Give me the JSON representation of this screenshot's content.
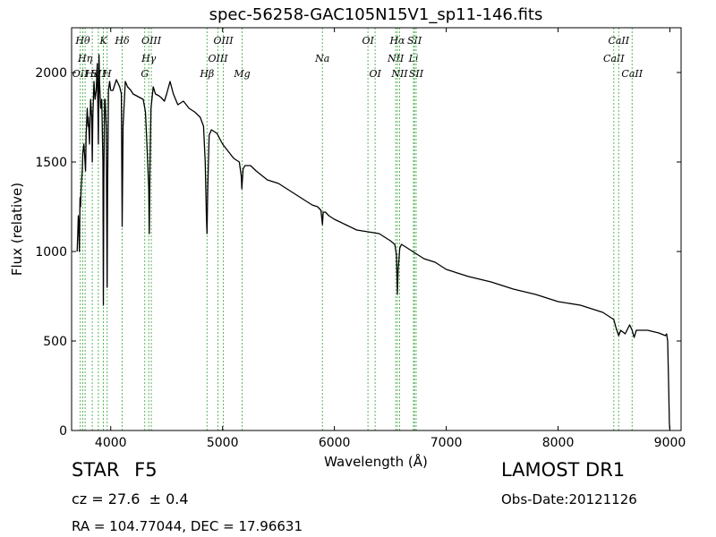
{
  "chart_data": {
    "type": "line",
    "title": "spec-56258-GAC105N15V1_sp11-146.fits",
    "xlabel": "Wavelength (Å)",
    "ylabel": "Flux (relative)",
    "xlim": [
      3650,
      9100
    ],
    "ylim": [
      0,
      2250
    ],
    "xticks": [
      4000,
      5000,
      6000,
      7000,
      8000,
      9000
    ],
    "yticks": [
      0,
      500,
      1000,
      1500,
      2000
    ],
    "grid": false,
    "line_color": "#000000",
    "marker_color": "#5bb55b",
    "series": [
      {
        "x": [
          3700,
          3705,
          3710,
          3715,
          3720,
          3725,
          3730,
          3735,
          3740,
          3745,
          3750,
          3760,
          3770,
          3775,
          3780,
          3790,
          3797,
          3800,
          3810,
          3820,
          3830,
          3835,
          3840,
          3850,
          3860,
          3870,
          3880,
          3889,
          3895,
          3900,
          3910,
          3920,
          3930,
          3934,
          3938,
          3945,
          3950,
          3960,
          3968,
          3972,
          3980,
          3990,
          4000,
          4010,
          4020,
          4050,
          4080,
          4095,
          4102,
          4110,
          4130,
          4150,
          4180,
          4200,
          4230,
          4260,
          4290,
          4310,
          4320,
          4330,
          4340,
          4345,
          4350,
          4360,
          4380,
          4400,
          4430,
          4450,
          4480,
          4500,
          4530,
          4560,
          4600,
          4650,
          4700,
          4750,
          4800,
          4830,
          4845,
          4855,
          4861,
          4867,
          4880,
          4900,
          4950,
          5000,
          5050,
          5100,
          5150,
          5167,
          5172,
          5183,
          5200,
          5250,
          5300,
          5400,
          5500,
          5600,
          5700,
          5800,
          5850,
          5880,
          5893,
          5900,
          5920,
          5950,
          6000,
          6100,
          6200,
          6300,
          6400,
          6500,
          6540,
          6555,
          6563,
          6570,
          6585,
          6600,
          6650,
          6700,
          6800,
          6900,
          7000,
          7200,
          7400,
          7600,
          7800,
          8000,
          8200,
          8400,
          8498,
          8520,
          8542,
          8560,
          8600,
          8640,
          8662,
          8680,
          8700,
          8800,
          8900,
          8960,
          8970,
          8975,
          8980,
          8990,
          8995,
          9000
        ],
        "y": [
          1000,
          1100,
          1200,
          1150,
          1000,
          1300,
          1250,
          1350,
          1400,
          1450,
          1550,
          1600,
          1500,
          1450,
          1650,
          1800,
          1700,
          1750,
          1600,
          1850,
          1750,
          1500,
          1750,
          1950,
          1850,
          1900,
          2050,
          1600,
          2100,
          1950,
          1800,
          1850,
          1500,
          700,
          1400,
          1850,
          1850,
          1700,
          800,
          1350,
          1900,
          1950,
          1900,
          1900,
          1900,
          1960,
          1920,
          1880,
          1140,
          1700,
          1950,
          1920,
          1900,
          1880,
          1870,
          1860,
          1850,
          1780,
          1650,
          1500,
          1350,
          1100,
          1450,
          1800,
          1920,
          1880,
          1870,
          1860,
          1840,
          1880,
          1950,
          1880,
          1820,
          1840,
          1800,
          1780,
          1750,
          1700,
          1500,
          1200,
          1100,
          1350,
          1650,
          1680,
          1660,
          1600,
          1560,
          1520,
          1500,
          1420,
          1350,
          1460,
          1480,
          1480,
          1450,
          1400,
          1380,
          1340,
          1300,
          1260,
          1250,
          1230,
          1150,
          1220,
          1220,
          1200,
          1180,
          1150,
          1120,
          1110,
          1100,
          1060,
          1040,
          980,
          760,
          900,
          1020,
          1040,
          1020,
          1000,
          960,
          940,
          900,
          860,
          830,
          790,
          760,
          720,
          700,
          660,
          620,
          570,
          530,
          560,
          540,
          590,
          560,
          520,
          560,
          560,
          545,
          530,
          540,
          520,
          500,
          200,
          40,
          0
        ]
      }
    ],
    "line_markers": [
      {
        "wl": 3727,
        "label": "OII",
        "row": 2
      },
      {
        "wl": 3750,
        "label": "Hθ",
        "row": 0
      },
      {
        "wl": 3771,
        "label": "Hη",
        "row": 1
      },
      {
        "wl": 3835,
        "label": "Hε",
        "row": 2
      },
      {
        "wl": 3889,
        "label": "SII",
        "row": 2
      },
      {
        "wl": 3934,
        "label": "K",
        "row": 0
      },
      {
        "wl": 3968,
        "label": "H",
        "row": 2
      },
      {
        "wl": 4102,
        "label": "Hδ",
        "row": 0
      },
      {
        "wl": 4304,
        "label": "G",
        "row": 2
      },
      {
        "wl": 4340,
        "label": "Hγ",
        "row": 1
      },
      {
        "wl": 4363,
        "label": "OIII",
        "row": 0
      },
      {
        "wl": 4861,
        "label": "Hβ",
        "row": 2
      },
      {
        "wl": 4959,
        "label": "OIII",
        "row": 1
      },
      {
        "wl": 5007,
        "label": "OIII",
        "row": 0
      },
      {
        "wl": 5175,
        "label": "Mg",
        "row": 2
      },
      {
        "wl": 5893,
        "label": "Na",
        "row": 1
      },
      {
        "wl": 6300,
        "label": "OI",
        "row": 0
      },
      {
        "wl": 6364,
        "label": "OI",
        "row": 2
      },
      {
        "wl": 6548,
        "label": "NII",
        "row": 1
      },
      {
        "wl": 6563,
        "label": "Hα",
        "row": 0
      },
      {
        "wl": 6583,
        "label": "NII",
        "row": 2
      },
      {
        "wl": 6707,
        "label": "Li",
        "row": 1
      },
      {
        "wl": 6716,
        "label": "SII",
        "row": 0
      },
      {
        "wl": 6731,
        "label": "SII",
        "row": 2
      },
      {
        "wl": 8498,
        "label": "CaII",
        "row": 1
      },
      {
        "wl": 8542,
        "label": "CaII",
        "row": 0
      },
      {
        "wl": 8662,
        "label": "CaII",
        "row": 2
      }
    ]
  },
  "footer": {
    "class_label": "STAR",
    "subclass_label": "F5",
    "cz_text": "cz = 27.6  ± 0.4",
    "coords_text": "RA = 104.77044, DEC = 17.96631",
    "survey": "LAMOST DR1",
    "obs_date": "Obs-Date:20121126"
  }
}
